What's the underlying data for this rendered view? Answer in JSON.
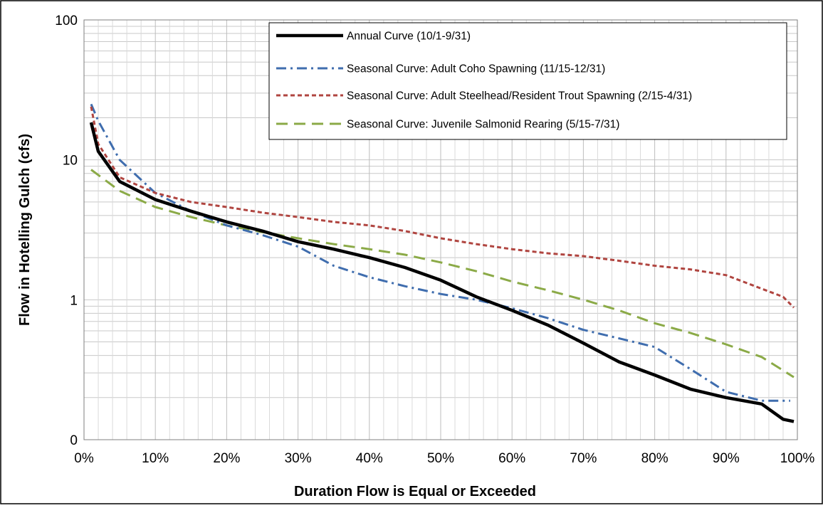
{
  "chart_data": {
    "type": "line",
    "title": "",
    "xlabel": "Duration Flow is Equal or Exceeded",
    "ylabel": "Flow in Hotelling Gulch  (cfs)",
    "x_scale": "linear",
    "y_scale": "log",
    "xlim": [
      0,
      100
    ],
    "ylim": [
      0.1,
      100
    ],
    "x_ticks": [
      0,
      10,
      20,
      30,
      40,
      50,
      60,
      70,
      80,
      90,
      100
    ],
    "x_tick_labels": [
      "0%",
      "10%",
      "20%",
      "30%",
      "40%",
      "50%",
      "60%",
      "70%",
      "80%",
      "90%",
      "100%"
    ],
    "y_ticks": [
      0.1,
      1,
      10,
      100
    ],
    "y_tick_labels": [
      "0",
      "1",
      "10",
      "100"
    ],
    "grid": true,
    "legend_position": "top-right",
    "series": [
      {
        "name": "Annual Curve (10/1-9/31)",
        "color": "#000000",
        "style": "solid",
        "x": [
          1,
          2,
          5,
          10,
          15,
          20,
          25,
          30,
          35,
          40,
          45,
          50,
          55,
          60,
          65,
          70,
          75,
          80,
          85,
          90,
          95,
          98,
          99.5
        ],
        "y": [
          18.5,
          11.5,
          7.0,
          5.2,
          4.3,
          3.6,
          3.1,
          2.6,
          2.3,
          2.0,
          1.7,
          1.38,
          1.05,
          0.84,
          0.66,
          0.49,
          0.36,
          0.29,
          0.23,
          0.2,
          0.18,
          0.14,
          0.135
        ]
      },
      {
        "name": "Seasonal Curve: Adult Coho Spawning (11/15-12/31)",
        "color": "#3F6DAE",
        "style": "dashdot",
        "x": [
          1,
          2,
          5,
          10,
          15,
          20,
          25,
          30,
          35,
          40,
          45,
          50,
          55,
          60,
          65,
          70,
          75,
          80,
          85,
          90,
          95,
          99
        ],
        "y": [
          25.0,
          19.0,
          10.0,
          5.8,
          4.3,
          3.4,
          2.9,
          2.4,
          1.75,
          1.45,
          1.25,
          1.1,
          1.0,
          0.87,
          0.74,
          0.61,
          0.53,
          0.46,
          0.32,
          0.22,
          0.19,
          0.19
        ]
      },
      {
        "name": "Seasonal Curve: Adult Steelhead/Resident Trout Spawning (2/15-4/31)",
        "color": "#B04540",
        "style": "dashed",
        "x": [
          1,
          2,
          5,
          10,
          15,
          20,
          25,
          30,
          35,
          40,
          45,
          50,
          55,
          60,
          65,
          70,
          75,
          80,
          85,
          90,
          95,
          98,
          99.5
        ],
        "y": [
          24.0,
          13.0,
          7.5,
          5.8,
          5.0,
          4.6,
          4.2,
          3.9,
          3.6,
          3.4,
          3.1,
          2.75,
          2.5,
          2.3,
          2.15,
          2.05,
          1.9,
          1.75,
          1.65,
          1.5,
          1.2,
          1.05,
          0.88
        ]
      },
      {
        "name": "Seasonal Curve: Juvenile Salmonid  Rearing (5/15-7/31)",
        "color": "#8BAA47",
        "style": "longdash",
        "x": [
          1,
          5,
          10,
          15,
          20,
          25,
          30,
          35,
          40,
          45,
          50,
          55,
          60,
          65,
          70,
          75,
          80,
          85,
          90,
          95,
          99.5
        ],
        "y": [
          8.5,
          6.0,
          4.6,
          3.9,
          3.4,
          3.05,
          2.75,
          2.5,
          2.3,
          2.1,
          1.85,
          1.6,
          1.35,
          1.17,
          1.0,
          0.84,
          0.68,
          0.58,
          0.48,
          0.39,
          0.28
        ]
      }
    ]
  }
}
